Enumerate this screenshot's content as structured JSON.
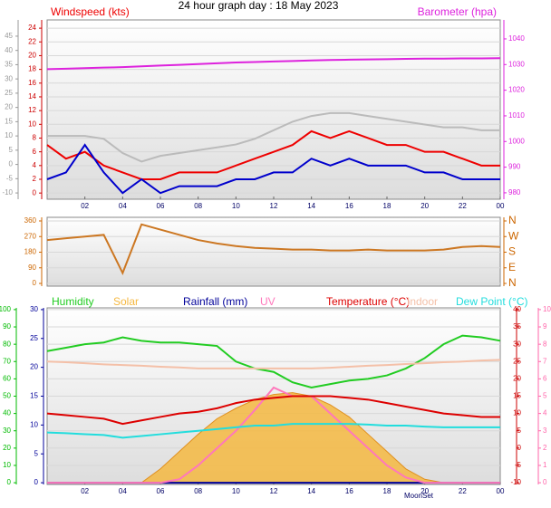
{
  "chart_data": [
    {
      "type": "line",
      "title": "24 hour graph day : 18 May 2023",
      "x": [
        0,
        1,
        2,
        3,
        4,
        5,
        6,
        7,
        8,
        9,
        10,
        11,
        12,
        13,
        14,
        15,
        16,
        17,
        18,
        19,
        20,
        21,
        22,
        23,
        24
      ],
      "xlim": [
        0,
        24
      ],
      "xticks": [
        {
          "value": 2,
          "label": "02"
        },
        {
          "value": 4,
          "label": "04"
        },
        {
          "value": 6,
          "label": "06"
        },
        {
          "value": 8,
          "label": "08"
        },
        10,
        12,
        14,
        16,
        18,
        20,
        22,
        {
          "value": 24,
          "label": "00"
        }
      ],
      "ylim": [
        -0.9,
        25.2
      ],
      "yticks": [
        0,
        2,
        4,
        6,
        8,
        10,
        12,
        14,
        16,
        18,
        20,
        22,
        24
      ],
      "ycolor": "#cc0000",
      "y3lim": [
        -12.2,
        50.7
      ],
      "y3ticks": [
        -10,
        -5,
        0,
        5,
        10,
        15,
        20,
        25,
        30,
        35,
        40,
        45
      ],
      "y3color": "#999999",
      "y2lim": [
        977.5,
        1047.4
      ],
      "y2ticks": [
        980,
        990,
        1000,
        1010,
        1020,
        1030,
        1040
      ],
      "y2color": "#dd22dd",
      "grid": true,
      "series": [
        {
          "name": "Windspeed (kts)",
          "color": "#ee0000",
          "values": [
            7,
            5,
            6,
            4,
            3,
            2,
            2,
            3,
            3,
            3,
            4,
            5,
            6,
            7,
            9,
            8,
            9,
            8,
            7,
            7,
            6,
            6,
            5,
            4,
            4
          ]
        },
        {
          "color": "#0000cc",
          "values": [
            2,
            3,
            7,
            3,
            0,
            2,
            0,
            1,
            1,
            1,
            2,
            2,
            3,
            3,
            5,
            4,
            5,
            4,
            4,
            4,
            3,
            3,
            2,
            2,
            2
          ]
        },
        {
          "color": "#bbbbbb",
          "axis": "y3",
          "values": [
            10,
            10,
            10,
            9,
            4,
            1,
            3,
            4,
            5,
            6,
            7,
            9,
            12,
            15,
            17,
            18,
            18,
            17,
            16,
            15,
            14,
            13,
            13,
            12,
            12
          ]
        },
        {
          "name": "Barometer (hpa)",
          "color": "#dd22dd",
          "axis": "y2",
          "values": [
            1028.2,
            1028.4,
            1028.6,
            1028.8,
            1029,
            1029.3,
            1029.6,
            1029.9,
            1030.2,
            1030.5,
            1030.8,
            1031,
            1031.2,
            1031.4,
            1031.6,
            1031.8,
            1031.9,
            1032,
            1032.1,
            1032.2,
            1032.3,
            1032.3,
            1032.4,
            1032.4,
            1032.5
          ]
        }
      ]
    },
    {
      "type": "line",
      "x": [
        0,
        1,
        2,
        3,
        4,
        5,
        6,
        7,
        8,
        9,
        10,
        11,
        12,
        13,
        14,
        15,
        16,
        17,
        18,
        19,
        20,
        21,
        22,
        23,
        24
      ],
      "xlim": [
        0,
        24
      ],
      "ylim": [
        -15.6,
        380.8
      ],
      "yticks": [
        0,
        90,
        180,
        270,
        360
      ],
      "ycolor": "#cc6600",
      "y2lim": [
        -15.6,
        380.8
      ],
      "y2ticks": [
        {
          "value": 360,
          "label": "N"
        },
        {
          "value": 270,
          "label": "W"
        },
        {
          "value": 180,
          "label": "S"
        },
        {
          "value": 90,
          "label": "E"
        },
        {
          "value": 0,
          "label": "N"
        }
      ],
      "y2color": "#cc6600",
      "grid": true,
      "series": [
        {
          "color": "#cc7722",
          "values": [
            250,
            260,
            270,
            280,
            60,
            340,
            310,
            280,
            250,
            230,
            215,
            205,
            200,
            195,
            195,
            190,
            190,
            195,
            190,
            190,
            190,
            195,
            210,
            215,
            210
          ]
        }
      ]
    },
    {
      "type": "line",
      "x": [
        0,
        1,
        2,
        3,
        4,
        5,
        6,
        7,
        8,
        9,
        10,
        11,
        12,
        13,
        14,
        15,
        16,
        17,
        18,
        19,
        20,
        21,
        22,
        23,
        24
      ],
      "xlim": [
        0,
        24
      ],
      "xticks": [
        {
          "value": 2,
          "label": "02"
        },
        {
          "value": 4,
          "label": "04"
        },
        {
          "value": 6,
          "label": "06"
        },
        {
          "value": 8,
          "label": "08"
        },
        10,
        12,
        14,
        16,
        18,
        20,
        22,
        {
          "value": 24,
          "label": "00"
        }
      ],
      "ylim": [
        -1,
        101
      ],
      "yticks": [
        0,
        10,
        20,
        30,
        40,
        50,
        60,
        70,
        80,
        90,
        100
      ],
      "ycolor": "#00bb00",
      "y3lim": [
        -0.3,
        30.3
      ],
      "y3ticks": [
        0,
        5,
        10,
        15,
        20,
        25,
        30
      ],
      "y3color": "#000099",
      "y2lim": [
        -10.5,
        40.5
      ],
      "y2ticks": [
        -10,
        -5,
        0,
        5,
        10,
        15,
        20,
        25,
        30,
        35,
        40
      ],
      "y2color": "#cc0000",
      "y4lim": [
        -0.1,
        10.1
      ],
      "y4ticks": [
        0,
        1,
        2,
        3,
        4,
        5,
        6,
        7,
        8,
        9,
        10
      ],
      "y4color": "#ff66aa",
      "grid": true,
      "annotation": "MoonSet",
      "series": [
        {
          "name": "Solar",
          "color": "#f5b841",
          "area": true,
          "values": [
            0,
            0,
            0,
            0,
            0,
            0,
            8,
            18,
            28,
            37,
            43,
            48,
            51,
            52,
            50,
            45,
            38,
            28,
            18,
            8,
            2,
            0,
            0,
            0,
            0
          ]
        },
        {
          "name": "Humidity",
          "color": "#22cc22",
          "values": [
            76,
            78,
            80,
            81,
            84,
            82,
            81,
            81,
            80,
            79,
            70,
            66,
            64,
            58,
            55,
            57,
            59,
            60,
            62,
            66,
            72,
            80,
            85,
            84,
            82
          ]
        },
        {
          "name": "Rainfall (mm)",
          "color": "#000099",
          "axis": "y3",
          "values": [
            0,
            0,
            0,
            0,
            0,
            0,
            0,
            0,
            0,
            0,
            0,
            0,
            0,
            0,
            0,
            0,
            0,
            0,
            0,
            0,
            0,
            0,
            0,
            0,
            0
          ]
        },
        {
          "name": "UV",
          "color": "#ff77bb",
          "axis": "y4",
          "values": [
            0,
            0,
            0,
            0,
            0,
            0,
            0,
            0.2,
            1,
            2,
            3,
            4.2,
            5.5,
            5,
            5,
            4,
            3,
            2,
            1,
            0.3,
            0,
            0,
            0,
            0,
            0
          ]
        },
        {
          "name": "Temperature (°C)",
          "color": "#dd0000",
          "axis": "y2",
          "values": [
            10,
            9.5,
            9,
            8.5,
            7,
            8,
            9,
            10,
            10.5,
            11.5,
            13,
            14,
            14.5,
            15,
            15,
            15,
            14.5,
            14,
            13,
            12,
            11,
            10,
            9.5,
            9,
            9
          ]
        },
        {
          "name": "Indoor",
          "color": "#f4c0a8",
          "axis": "y2",
          "values": [
            25,
            24.8,
            24.5,
            24.2,
            24,
            23.8,
            23.5,
            23.3,
            23,
            23,
            23,
            23,
            23,
            23,
            23,
            23.2,
            23.5,
            23.8,
            24,
            24.3,
            24.5,
            24.8,
            25,
            25.3,
            25.5
          ]
        },
        {
          "name": "Dew Point (°C)",
          "color": "#22dddd",
          "axis": "y2",
          "values": [
            4.5,
            4.3,
            4,
            3.8,
            3,
            3.5,
            4,
            4.5,
            5,
            5.5,
            6,
            6.5,
            6.5,
            7,
            7,
            7,
            7,
            6.8,
            6.5,
            6.5,
            6.2,
            6,
            6,
            6,
            6
          ]
        }
      ]
    }
  ]
}
